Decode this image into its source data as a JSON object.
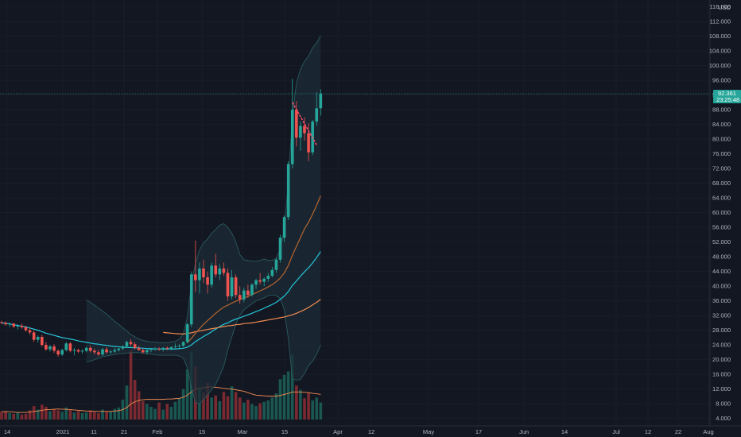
{
  "chart_data": {
    "type": "candlestick",
    "y_axis": {
      "currency": "USD",
      "ticks": [
        116,
        112,
        108,
        104,
        100,
        96,
        92,
        88,
        84,
        80,
        76,
        72,
        68,
        64,
        60,
        56,
        52,
        48,
        44,
        40,
        36,
        32,
        28,
        24,
        20,
        16,
        12,
        8,
        4
      ],
      "tick_labels": [
        "116.000",
        "112.000",
        "108.000",
        "104.000",
        "100.000",
        "96.000",
        "92.000",
        "88.000",
        "84.000",
        "80.000",
        "76.000",
        "72.000",
        "68.000",
        "64.000",
        "60.000",
        "56.000",
        "52.000",
        "48.000",
        "44.000",
        "40.000",
        "36.000",
        "32.000",
        "28.000",
        "24.000",
        "20.000",
        "16.000",
        "12.000",
        "8.000",
        "4.000"
      ],
      "range": [
        3,
        117
      ]
    },
    "x_axis": {
      "tick_labels": [
        "14",
        "2021",
        "11",
        "21",
        "Feb",
        "15",
        "Mar",
        "15",
        "Apr",
        "12",
        "May",
        "17",
        "Jun",
        "14",
        "Jul",
        "12",
        "22",
        "Aug"
      ]
    },
    "last_price": {
      "value_label": "92.361",
      "countdown": "23:25:48",
      "value": 92.361
    },
    "candles": [
      [
        30.2,
        30.6,
        29.6,
        30.0
      ],
      [
        30.0,
        30.4,
        29.2,
        29.6
      ],
      [
        29.6,
        30.2,
        28.8,
        29.8
      ],
      [
        29.8,
        30.0,
        28.6,
        29.0
      ],
      [
        29.0,
        29.6,
        28.2,
        29.2
      ],
      [
        29.2,
        29.8,
        28.4,
        28.8
      ],
      [
        28.8,
        29.2,
        27.6,
        28.0
      ],
      [
        28.0,
        28.6,
        26.8,
        27.4
      ],
      [
        27.4,
        28.0,
        24.8,
        25.4
      ],
      [
        25.4,
        26.6,
        24.6,
        26.2
      ],
      [
        26.2,
        26.8,
        23.6,
        24.0
      ],
      [
        24.0,
        24.8,
        22.4,
        22.8
      ],
      [
        22.8,
        24.0,
        22.2,
        23.6
      ],
      [
        23.6,
        24.2,
        21.8,
        22.4
      ],
      [
        22.4,
        22.8,
        20.8,
        21.4
      ],
      [
        21.4,
        23.0,
        21.0,
        22.6
      ],
      [
        22.6,
        24.8,
        22.2,
        24.4
      ],
      [
        24.4,
        24.8,
        22.0,
        22.4
      ],
      [
        22.4,
        23.2,
        21.2,
        22.6
      ],
      [
        22.6,
        23.0,
        21.8,
        22.2
      ],
      [
        22.2,
        22.8,
        21.6,
        22.4
      ],
      [
        22.4,
        23.6,
        22.0,
        23.2
      ],
      [
        23.2,
        23.8,
        22.0,
        22.4
      ],
      [
        22.4,
        23.0,
        21.4,
        22.0
      ],
      [
        22.0,
        22.6,
        21.0,
        21.4
      ],
      [
        21.4,
        23.2,
        21.0,
        22.8
      ],
      [
        22.8,
        23.4,
        21.6,
        22.0
      ],
      [
        22.0,
        22.6,
        21.6,
        22.2
      ],
      [
        22.2,
        23.2,
        21.8,
        22.6
      ],
      [
        22.6,
        23.2,
        22.2,
        23.0
      ],
      [
        23.0,
        24.0,
        22.6,
        23.6
      ],
      [
        23.6,
        25.2,
        23.2,
        24.8
      ],
      [
        24.8,
        25.6,
        23.6,
        24.2
      ],
      [
        24.2,
        24.8,
        22.8,
        23.2
      ],
      [
        23.2,
        23.8,
        22.4,
        22.6
      ],
      [
        22.6,
        23.0,
        21.6,
        22.0
      ],
      [
        22.0,
        22.8,
        21.4,
        22.6
      ],
      [
        22.6,
        23.2,
        22.0,
        22.8
      ],
      [
        22.8,
        23.4,
        22.4,
        23.0
      ],
      [
        23.0,
        23.4,
        22.4,
        22.8
      ],
      [
        22.8,
        23.4,
        22.2,
        23.2
      ],
      [
        23.2,
        23.6,
        22.6,
        23.0
      ],
      [
        23.0,
        23.6,
        22.6,
        23.4
      ],
      [
        23.4,
        24.4,
        23.0,
        23.6
      ],
      [
        23.6,
        24.2,
        23.2,
        23.8
      ],
      [
        23.8,
        25.0,
        23.4,
        24.8
      ],
      [
        24.8,
        30.0,
        24.4,
        29.6
      ],
      [
        29.6,
        44.0,
        28.8,
        43.2
      ],
      [
        43.2,
        52.4,
        38.4,
        41.6
      ],
      [
        41.6,
        46.4,
        38.0,
        44.8
      ],
      [
        44.8,
        47.2,
        40.8,
        42.4
      ],
      [
        42.4,
        44.0,
        38.0,
        40.4
      ],
      [
        40.4,
        46.4,
        39.6,
        45.6
      ],
      [
        45.6,
        48.8,
        42.4,
        43.2
      ],
      [
        43.2,
        46.0,
        41.6,
        44.8
      ],
      [
        44.8,
        46.4,
        42.8,
        43.6
      ],
      [
        43.6,
        44.8,
        36.0,
        37.2
      ],
      [
        37.2,
        44.4,
        36.4,
        42.4
      ],
      [
        42.4,
        43.2,
        36.8,
        37.6
      ],
      [
        37.6,
        40.0,
        35.2,
        36.4
      ],
      [
        36.4,
        39.6,
        35.6,
        38.8
      ],
      [
        38.8,
        40.4,
        36.8,
        37.6
      ],
      [
        37.6,
        40.8,
        37.2,
        40.4
      ],
      [
        40.4,
        42.0,
        39.2,
        41.6
      ],
      [
        41.6,
        43.6,
        40.4,
        41.2
      ],
      [
        41.2,
        42.4,
        40.0,
        42.0
      ],
      [
        42.0,
        43.6,
        41.2,
        42.8
      ],
      [
        42.8,
        45.2,
        42.4,
        44.4
      ],
      [
        44.4,
        47.6,
        43.6,
        47.2
      ],
      [
        47.2,
        54.0,
        46.4,
        53.2
      ],
      [
        53.2,
        59.2,
        52.0,
        58.8
      ],
      [
        58.8,
        74.0,
        58.0,
        73.2
      ],
      [
        73.2,
        96.4,
        72.0,
        88.0
      ],
      [
        88.0,
        90.4,
        78.0,
        80.4
      ],
      [
        80.4,
        84.8,
        76.8,
        83.6
      ],
      [
        83.6,
        86.0,
        79.6,
        81.6
      ],
      [
        81.6,
        84.4,
        74.0,
        76.4
      ],
      [
        76.4,
        85.2,
        75.6,
        84.8
      ],
      [
        84.8,
        92.8,
        83.6,
        88.4
      ],
      [
        88.4,
        93.6,
        86.4,
        92.4
      ]
    ],
    "volumes": [
      2.2,
      2.4,
      1.8,
      1.6,
      2.0,
      1.4,
      1.6,
      2.6,
      3.8,
      2.8,
      4.2,
      3.6,
      2.4,
      3.0,
      2.6,
      2.2,
      3.4,
      2.8,
      2.0,
      2.4,
      1.8,
      2.0,
      2.6,
      2.2,
      1.8,
      2.8,
      2.2,
      2.4,
      3.0,
      3.4,
      5.6,
      9.6,
      19.6,
      11.2,
      8.0,
      5.2,
      4.4,
      3.6,
      3.0,
      4.8,
      2.8,
      4.4,
      3.6,
      5.0,
      6.0,
      8.6,
      14.2,
      19.2,
      15.0,
      8.8,
      7.6,
      10.4,
      6.2,
      6.8,
      5.2,
      7.8,
      6.6,
      9.4,
      7.8,
      6.2,
      4.8,
      5.6,
      4.4,
      3.8,
      4.6,
      5.0,
      5.4,
      6.2,
      7.4,
      11.4,
      12.6,
      13.6,
      18.4,
      9.6,
      8.4,
      6.0,
      7.6,
      5.4,
      6.2,
      4.8
    ],
    "series": [
      {
        "name": "",
        "role": "moving average 1",
        "color": "#26c6da",
        "values": [
          30.0,
          29.9,
          29.7,
          29.5,
          29.3,
          29.1,
          28.9,
          28.6,
          28.3,
          28.0,
          27.6,
          27.2,
          26.9,
          26.6,
          26.3,
          26.0,
          25.8,
          25.6,
          25.4,
          25.1,
          24.9,
          24.7,
          24.5,
          24.3,
          24.2,
          24.0,
          23.9,
          23.7,
          23.6,
          23.5,
          23.4,
          23.3,
          23.3,
          23.2,
          23.2,
          23.1,
          23.0,
          23.0,
          22.9,
          22.9,
          22.9,
          22.9,
          22.9,
          22.9,
          23.0,
          23.1,
          23.4,
          24.0,
          24.9,
          25.6,
          26.3,
          26.9,
          27.6,
          28.3,
          29.0,
          29.6,
          30.0,
          30.6,
          31.0,
          31.4,
          31.8,
          32.2,
          32.6,
          33.1,
          33.5,
          34.0,
          34.5,
          35.0,
          35.6,
          36.4,
          37.3,
          38.5,
          40.2,
          41.4,
          42.7,
          43.9,
          45.0,
          46.3,
          47.8,
          49.4
        ]
      },
      {
        "name": "",
        "role": "moving average 2",
        "color": "#f28b50",
        "values": [
          null,
          null,
          null,
          null,
          null,
          null,
          null,
          null,
          null,
          null,
          null,
          null,
          null,
          null,
          null,
          null,
          null,
          null,
          null,
          null,
          null,
          null,
          null,
          null,
          null,
          null,
          null,
          null,
          null,
          null,
          null,
          null,
          null,
          null,
          null,
          null,
          null,
          null,
          null,
          null,
          27.4,
          27.3,
          27.2,
          27.1,
          27.0,
          27.0,
          27.1,
          27.3,
          27.6,
          27.8,
          28.0,
          28.2,
          28.4,
          28.6,
          28.8,
          29.0,
          29.2,
          29.3,
          29.5,
          29.6,
          29.8,
          29.9,
          30.0,
          30.2,
          30.4,
          30.6,
          30.8,
          31.0,
          31.2,
          31.4,
          31.6,
          31.9,
          32.2,
          32.6,
          33.1,
          33.6,
          34.2,
          34.9,
          35.6,
          36.4
        ]
      },
      {
        "name": "",
        "role": "moving average 3",
        "color": "#b7652f",
        "values": [
          null,
          null,
          null,
          null,
          null,
          null,
          null,
          null,
          null,
          null,
          null,
          null,
          null,
          null,
          null,
          null,
          null,
          null,
          null,
          null,
          null,
          null,
          null,
          null,
          null,
          null,
          null,
          null,
          null,
          null,
          null,
          null,
          null,
          null,
          null,
          null,
          null,
          null,
          null,
          null,
          null,
          null,
          null,
          null,
          null,
          null,
          24.6,
          25.8,
          27.2,
          28.4,
          29.6,
          30.6,
          31.6,
          32.6,
          33.5,
          34.3,
          34.8,
          35.4,
          35.9,
          36.3,
          36.8,
          37.2,
          37.7,
          38.2,
          38.7,
          39.2,
          39.8,
          40.4,
          41.2,
          42.2,
          43.6,
          45.6,
          48.4,
          50.8,
          53.2,
          55.6,
          57.4,
          59.6,
          62.0,
          64.6
        ]
      },
      {
        "name": "",
        "role": "trend line",
        "color": "#ff4d6d",
        "from": [
          72,
          90.0
        ],
        "to": [
          78,
          78.4
        ]
      }
    ],
    "bollinger": {
      "upper": [
        null,
        null,
        null,
        null,
        null,
        null,
        null,
        null,
        null,
        null,
        null,
        null,
        null,
        null,
        null,
        null,
        null,
        null,
        null,
        null,
        null,
        36.2,
        35.6,
        34.8,
        34.0,
        33.2,
        32.4,
        31.4,
        30.4,
        29.6,
        28.6,
        27.8,
        26.8,
        26.2,
        25.6,
        25.2,
        25.0,
        24.8,
        24.8,
        24.6,
        24.6,
        24.6,
        24.8,
        25.0,
        25.6,
        27.0,
        31.6,
        40.6,
        46.2,
        49.8,
        51.8,
        52.8,
        54.4,
        55.4,
        56.6,
        57.0,
        56.0,
        54.4,
        52.0,
        48.6,
        47.2,
        47.0,
        46.8,
        46.8,
        47.0,
        47.4,
        47.0,
        47.0,
        47.6,
        50.0,
        55.6,
        68.4,
        86.4,
        95.2,
        99.0,
        101.2,
        102.6,
        104.8,
        106.2,
        108.2
      ],
      "lower": [
        null,
        null,
        null,
        null,
        null,
        null,
        null,
        null,
        null,
        null,
        null,
        null,
        null,
        null,
        null,
        null,
        null,
        null,
        null,
        null,
        null,
        19.4,
        19.6,
        20.0,
        20.4,
        20.8,
        21.0,
        21.2,
        21.4,
        21.6,
        21.7,
        21.8,
        21.9,
        21.9,
        21.9,
        21.8,
        21.6,
        21.5,
        21.3,
        21.2,
        21.2,
        21.2,
        21.2,
        21.2,
        21.0,
        20.4,
        17.8,
        12.4,
        8.4,
        8.0,
        9.2,
        10.4,
        11.8,
        13.2,
        15.6,
        18.2,
        22.6,
        26.2,
        29.6,
        32.0,
        33.6,
        34.4,
        35.2,
        36.0,
        36.4,
        36.8,
        37.4,
        37.6,
        37.4,
        36.6,
        33.6,
        25.6,
        14.8,
        14.4,
        14.6,
        16.2,
        18.4,
        19.6,
        21.4,
        24.0
      ]
    },
    "volume_ma": [
      2.2,
      2.2,
      2.2,
      2.1,
      2.0,
      2.0,
      2.0,
      2.1,
      2.3,
      2.4,
      2.6,
      2.8,
      2.8,
      2.9,
      3.0,
      2.9,
      2.9,
      2.8,
      2.7,
      2.6,
      2.5,
      2.4,
      2.4,
      2.3,
      2.3,
      2.3,
      2.3,
      2.3,
      2.4,
      2.5,
      2.8,
      3.4,
      4.4,
      5.0,
      5.4,
      5.6,
      5.7,
      5.7,
      5.7,
      5.7,
      5.7,
      5.8,
      5.8,
      5.9,
      6.0,
      6.3,
      6.9,
      7.8,
      8.6,
      8.9,
      9.0,
      9.2,
      9.2,
      9.1,
      9.0,
      8.8,
      8.7,
      8.6,
      8.4,
      8.2,
      8.0,
      7.6,
      7.2,
      6.9,
      6.8,
      6.7,
      6.6,
      6.6,
      6.6,
      6.8,
      7.1,
      7.4,
      7.8,
      7.8,
      7.8,
      7.7,
      7.6,
      7.4,
      7.3,
      7.1
    ],
    "colors": {
      "background": "#131722",
      "grid": "#1f2330",
      "up": "#26a69a",
      "down": "#ef5350",
      "vol_up": "#1a5750",
      "vol_down": "#7a2a30",
      "bb_fill": "#1c2b35",
      "bb_line": "#2a5b5e",
      "price_tag": "#26a69a",
      "axis_text": "#b2b5be"
    }
  }
}
